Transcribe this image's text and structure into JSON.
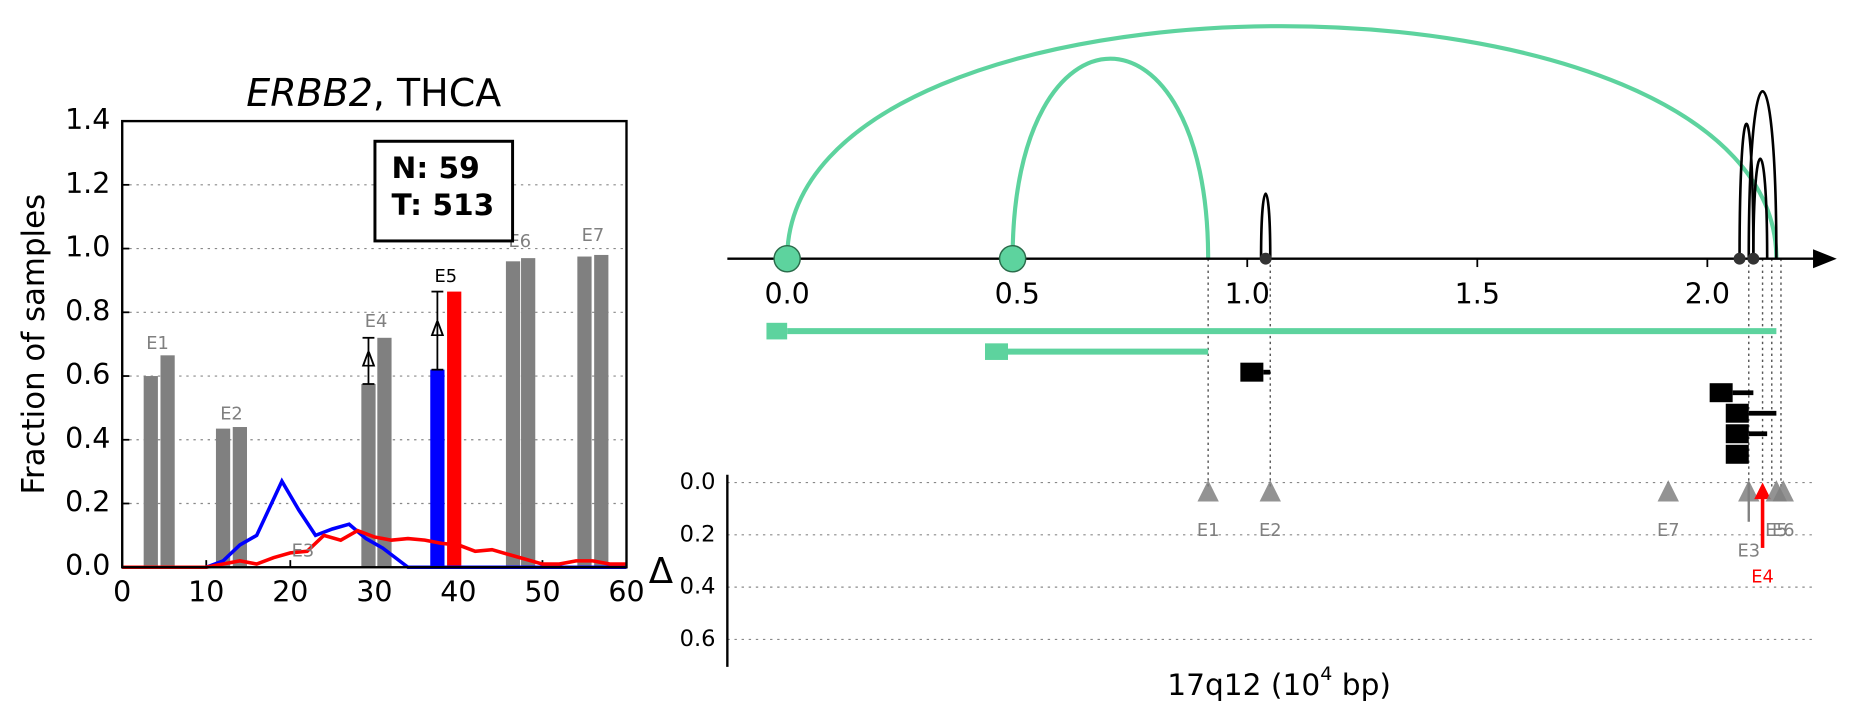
{
  "chart_data": [
    {
      "type": "bar",
      "title": [
        "ERBB2",
        ", THCA"
      ],
      "ylabel": "Fraction of samples",
      "xlim": [
        0,
        60
      ],
      "ylim": [
        0,
        1.4
      ],
      "xticks": [
        0,
        10,
        20,
        30,
        40,
        50,
        60
      ],
      "yticks": [
        {
          "value": 0,
          "label": "0.0"
        },
        0.2,
        0.4,
        0.6,
        0.8,
        {
          "value": 1,
          "label": "1.0"
        },
        1.2,
        1.4
      ],
      "grid": true,
      "bars": {
        "x": [
          3.4,
          5.4,
          12,
          14,
          29.3,
          31.2,
          37.5,
          39.5,
          46.5,
          48.3,
          55,
          57
        ],
        "values": [
          0.6,
          0.665,
          0.435,
          0.44,
          0.575,
          0.72,
          0.62,
          0.865,
          0.96,
          0.97,
          0.975,
          0.98
        ],
        "colors": [
          "#808080",
          "#808080",
          "#808080",
          "#808080",
          "#808080",
          "#808080",
          "#0000ff",
          "#ff0000",
          "#808080",
          "#808080",
          "#808080",
          "#808080"
        ]
      },
      "exon_labels": [
        {
          "label": "E1",
          "x": 4.2,
          "y": 0.7,
          "color": "#808080"
        },
        {
          "label": "E2",
          "x": 13,
          "y": 0.48,
          "color": "#808080"
        },
        {
          "label": "E3",
          "x": 21.5,
          "y": 0.05,
          "color": "#808080"
        },
        {
          "label": "E4",
          "x": 30.2,
          "y": 0.77,
          "color": "#808080"
        },
        {
          "label": "E5",
          "x": 38.5,
          "y": 0.91,
          "color": "#000000"
        },
        {
          "label": "E6",
          "x": 47.3,
          "y": 1.02,
          "color": "#808080"
        },
        {
          "label": "E7",
          "x": 56,
          "y": 1.04,
          "color": "#808080"
        }
      ],
      "intervals": [
        {
          "x": 29.3,
          "low": 0.575,
          "high": 0.72,
          "label": "Δ"
        },
        {
          "x": 37.5,
          "low": 0.62,
          "high": 0.865,
          "label": "Δ"
        }
      ],
      "series": [
        {
          "color": "#0000ff",
          "x": [
            0,
            2,
            4,
            6,
            8,
            10,
            12,
            14,
            16,
            19,
            21,
            23,
            25,
            27,
            29,
            31,
            33,
            34,
            36,
            38,
            40,
            45,
            50,
            55,
            60
          ],
          "values": [
            0,
            0,
            0,
            0,
            0,
            0,
            0.02,
            0.07,
            0.1,
            0.27,
            0.18,
            0.1,
            0.12,
            0.135,
            0.09,
            0.06,
            0.02,
            0,
            0,
            0,
            0,
            0,
            0,
            0,
            0
          ]
        },
        {
          "color": "#ff0000",
          "x": [
            0,
            2,
            4,
            6,
            8,
            10,
            12,
            14,
            16,
            18,
            20,
            22,
            24,
            26,
            28,
            30,
            32,
            34,
            36,
            38,
            40,
            42,
            44,
            46,
            48,
            50,
            52,
            54,
            56,
            58,
            60
          ],
          "values": [
            0,
            0,
            0,
            0,
            0,
            0,
            0.01,
            0.02,
            0.01,
            0.03,
            0.045,
            0.05,
            0.1,
            0.085,
            0.115,
            0.095,
            0.085,
            0.09,
            0.085,
            0.075,
            0.07,
            0.05,
            0.055,
            0.04,
            0.025,
            0.01,
            0.01,
            0.02,
            0.02,
            0.01,
            0.01
          ]
        }
      ],
      "legend_text": [
        "N: 59",
        "T: 513"
      ]
    },
    {
      "type": "splice-graph",
      "xlim": [
        -0.13,
        2.24
      ],
      "xticks": [
        {
          "value": 0,
          "label": "0.0"
        },
        0.5,
        {
          "value": 1,
          "label": "1.0"
        },
        1.5,
        {
          "value": 2,
          "label": "2.0"
        }
      ],
      "xlabel": [
        "17q12 (10",
        "4",
        " bp)"
      ],
      "arcs": [
        {
          "start": 0,
          "end": 2.15,
          "height": 1,
          "color": "#5dd39e"
        },
        {
          "start": 0.49,
          "end": 0.915,
          "height": 0.86,
          "color": "#5dd39e"
        },
        {
          "start": 1.03,
          "end": 1.05,
          "height": 0.28,
          "color": "#000000"
        },
        {
          "start": 2.07,
          "end": 2.1,
          "height": 0.58,
          "color": "#000000"
        },
        {
          "start": 2.09,
          "end": 2.15,
          "height": 0.72,
          "color": "#000000"
        },
        {
          "start": 2.1,
          "end": 2.13,
          "height": 0.43,
          "color": "#000000"
        }
      ],
      "ss_nodes": [
        0,
        0.49
      ],
      "dots": [
        1.04,
        2.07,
        2.1
      ],
      "node_color": "#5dd39e",
      "transcripts": [
        {
          "start": -0.045,
          "box_end": 0,
          "end": 2.15,
          "color": "#5dd39e"
        },
        {
          "start": 0.43,
          "box_end": 0.48,
          "end": 0.915,
          "color": "#5dd39e"
        },
        {
          "start": 0.985,
          "box_end": 1.035,
          "end": 1.05,
          "color": "#000000"
        },
        {
          "start": 2.005,
          "box_end": 2.055,
          "end": 2.1,
          "color": "#000000"
        },
        {
          "start": 2.04,
          "box_end": 2.09,
          "end": 2.15,
          "color": "#000000"
        },
        {
          "start": 2.04,
          "box_end": 2.09,
          "end": 2.13,
          "color": "#000000"
        },
        {
          "start": 2.04,
          "box_end": 2.09,
          "end": 2.09,
          "color": "#000000"
        }
      ],
      "guides": [
        0.915,
        1.05,
        2.09,
        2.12,
        2.14,
        2.16
      ],
      "delta_label": "Δ",
      "ylim": [
        -0.03,
        0.705
      ],
      "yticks": [
        {
          "value": 0,
          "label": "0.0"
        },
        0.2,
        0.4,
        0.6
      ],
      "exons": [
        {
          "label": "E1",
          "x": 0.915,
          "delta": 0,
          "color": "#808080"
        },
        {
          "label": "E2",
          "x": 1.05,
          "delta": 0,
          "color": "#808080"
        },
        {
          "label": "E7",
          "x": 1.915,
          "delta": 0,
          "color": "#808080"
        },
        {
          "label": "E3",
          "x": 2.09,
          "delta": 0.15,
          "color": "#808080"
        },
        {
          "label": "E4",
          "x": 2.12,
          "delta": 0.25,
          "color": "#ff0000"
        },
        {
          "label": "E5",
          "x": 2.15,
          "delta": 0,
          "color": "#808080"
        },
        {
          "label": "E6",
          "x": 2.165,
          "delta": 0,
          "color": "#808080"
        }
      ]
    }
  ]
}
